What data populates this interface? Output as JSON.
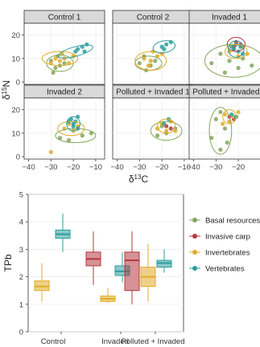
{
  "colors": {
    "basal": "#84a55a",
    "carp": "#b5383f",
    "invert": "#e0ac26",
    "vert": "#2b9d9d",
    "strip": "#d9d9d9",
    "grid": "#ececec"
  },
  "chart_data": [
    {
      "type": "scatter",
      "facets": [
        "Control 1",
        "Control 2",
        "Invaded 1",
        "Invaded 2",
        "Polluted + Invaded 1",
        "Polluted + Invaded 2"
      ],
      "xlabel": "δ13C",
      "ylabel": "δ15N",
      "xlim": [
        -42,
        -6
      ],
      "ylim": [
        -1,
        25
      ],
      "xticks": [
        -40,
        -30,
        -20,
        -10
      ],
      "yticks": [
        0,
        10,
        20
      ],
      "series": [
        {
          "name": "Basal resources",
          "color_key": "basal"
        },
        {
          "name": "Invasive carp",
          "color_key": "carp"
        },
        {
          "name": "Invertebrates",
          "color_key": "invert"
        },
        {
          "name": "Vertebrates",
          "color_key": "vert"
        }
      ],
      "points": {
        "Control 1": {
          "basal": [
            [
              -30,
              9
            ],
            [
              -28,
              6
            ],
            [
              -26,
              7
            ],
            [
              -29,
              4
            ],
            [
              -24,
              8
            ],
            [
              -27,
              11
            ]
          ],
          "invert": [
            [
              -30,
              8
            ],
            [
              -26,
              9
            ],
            [
              -24,
              10
            ],
            [
              -22,
              8
            ],
            [
              -20,
              11
            ],
            [
              -28,
              10
            ],
            [
              -25,
              12
            ]
          ],
          "vert": [
            [
              -18,
              14
            ],
            [
              -16,
              15
            ],
            [
              -14,
              16
            ],
            [
              -19,
              13
            ],
            [
              -15,
              13
            ]
          ]
        },
        "Control 2": {
          "basal": [
            [
              -30,
              8
            ],
            [
              -27,
              5
            ],
            [
              -25,
              7
            ],
            [
              -23,
              9
            ],
            [
              -28,
              11
            ]
          ],
          "invert": [
            [
              -28,
              10
            ],
            [
              -25,
              9
            ],
            [
              -22,
              11
            ],
            [
              -20,
              12
            ],
            [
              -24,
              13
            ],
            [
              -26,
              7
            ]
          ],
          "vert": [
            [
              -20,
              15
            ],
            [
              -18,
              16
            ],
            [
              -16,
              17
            ],
            [
              -19,
              14
            ]
          ]
        },
        "Invaded 1": {
          "basal": [
            [
              -32,
              8
            ],
            [
              -26,
              4
            ],
            [
              -20,
              6
            ],
            [
              -14,
              7
            ],
            [
              -28,
              12
            ],
            [
              -18,
              10
            ],
            [
              -24,
              9
            ]
          ],
          "carp": [
            [
              -21,
              17
            ],
            [
              -19,
              16
            ],
            [
              -22,
              15
            ]
          ],
          "invert": [
            [
              -24,
              13
            ],
            [
              -20,
              11
            ],
            [
              -16,
              12
            ],
            [
              -22,
              14
            ],
            [
              -18,
              15
            ]
          ],
          "vert": [
            [
              -22,
              14
            ],
            [
              -20,
              13
            ],
            [
              -19,
              15
            ],
            [
              -18,
              12
            ],
            [
              -21,
              16
            ],
            [
              -23,
              15
            ]
          ]
        },
        "Invaded 2": {
          "basal": [
            [
              -26,
              8
            ],
            [
              -22,
              7
            ],
            [
              -16,
              9
            ],
            [
              -12,
              10
            ]
          ],
          "invert": [
            [
              -30,
              2
            ],
            [
              -24,
              12
            ],
            [
              -20,
              11
            ],
            [
              -18,
              13
            ],
            [
              -22,
              14
            ]
          ],
          "vert": [
            [
              -21,
              16
            ],
            [
              -20,
              14
            ],
            [
              -19,
              15
            ],
            [
              -18,
              17
            ],
            [
              -22,
              15
            ],
            [
              -20,
              13
            ],
            [
              -18,
              12
            ]
          ]
        },
        "Polluted + Invaded 1": {
          "basal": [
            [
              -22,
              9
            ],
            [
              -18,
              10
            ],
            [
              -14,
              12
            ],
            [
              -20,
              13
            ]
          ],
          "carp": [
            [
              -18,
              13
            ],
            [
              -16,
              12
            ]
          ],
          "invert": [
            [
              -22,
              12
            ],
            [
              -20,
              14
            ],
            [
              -16,
              15
            ],
            [
              -18,
              11
            ],
            [
              -14,
              11
            ]
          ],
          "vert": [
            [
              -19,
              14
            ],
            [
              -17,
              16
            ]
          ]
        },
        "Polluted + Invaded 2": {
          "basal": [
            [
              -32,
              8
            ],
            [
              -28,
              3
            ],
            [
              -26,
              12
            ],
            [
              -30,
              16
            ],
            [
              -28,
              19
            ],
            [
              -25,
              6
            ]
          ],
          "carp": [
            [
              -24,
              17
            ],
            [
              -22,
              16
            ]
          ],
          "invert": [
            [
              -26,
              18
            ],
            [
              -24,
              15
            ],
            [
              -22,
              17
            ],
            [
              -20,
              19
            ],
            [
              -27,
              14
            ]
          ],
          "vert": [
            [
              -23,
              18
            ],
            [
              -21,
              17
            ]
          ]
        }
      },
      "ellipses": {
        "Control 1": [
          {
            "k": "basal",
            "cx": -26,
            "cy": 8,
            "rx": 6,
            "ry": 3.5,
            "rot": 0
          },
          {
            "k": "invert",
            "cx": -26,
            "cy": 10,
            "rx": 8,
            "ry": 3,
            "rot": 0
          },
          {
            "k": "vert",
            "cx": -19,
            "cy": 13,
            "rx": 8,
            "ry": 2,
            "rot": -15
          }
        ],
        "Control 2": [
          {
            "k": "basal",
            "cx": -26,
            "cy": 8,
            "rx": 6,
            "ry": 3,
            "rot": 0
          },
          {
            "k": "invert",
            "cx": -25,
            "cy": 9,
            "rx": 7,
            "ry": 4,
            "rot": 0
          },
          {
            "k": "vert",
            "cx": -19,
            "cy": 15,
            "rx": 5,
            "ry": 2.5,
            "rot": -10
          }
        ],
        "Invaded 1": [
          {
            "k": "basal",
            "cx": -22,
            "cy": 9,
            "rx": 13,
            "ry": 7,
            "rot": 0
          },
          {
            "k": "carp",
            "cx": -21,
            "cy": 16,
            "rx": 4,
            "ry": 3,
            "rot": 0
          },
          {
            "k": "invert",
            "cx": -21,
            "cy": 13,
            "rx": 5,
            "ry": 3,
            "rot": 0
          },
          {
            "k": "vert",
            "cx": -21,
            "cy": 14,
            "rx": 3.5,
            "ry": 3.5,
            "rot": 0
          }
        ],
        "Invaded 2": [
          {
            "k": "basal",
            "cx": -19,
            "cy": 9,
            "rx": 9,
            "ry": 3,
            "rot": 0
          },
          {
            "k": "invert",
            "cx": -21,
            "cy": 12,
            "rx": 6,
            "ry": 3,
            "rot": 0
          },
          {
            "k": "vert",
            "cx": -20,
            "cy": 14,
            "rx": 3,
            "ry": 3,
            "rot": 0
          }
        ],
        "Polluted + Invaded 1": [
          {
            "k": "basal",
            "cx": -18,
            "cy": 11,
            "rx": 7,
            "ry": 4,
            "rot": 0
          },
          {
            "k": "invert",
            "cx": -18,
            "cy": 13,
            "rx": 4,
            "ry": 3,
            "rot": 0
          }
        ],
        "Polluted + Invaded 2": [
          {
            "k": "basal",
            "cx": -28,
            "cy": 11,
            "rx": 5,
            "ry": 10,
            "rot": 0
          },
          {
            "k": "invert",
            "cx": -24,
            "cy": 17,
            "rx": 3,
            "ry": 3,
            "rot": 0
          }
        ]
      }
    },
    {
      "type": "box",
      "categories": [
        "Control",
        "Invaded",
        "Polluted + Invaded"
      ],
      "ylabel": "TPb",
      "ylim": [
        0,
        5
      ],
      "yticks": [
        0,
        1,
        2,
        3,
        4,
        5
      ],
      "legend_position": "right",
      "series": [
        {
          "name": "Basal resources",
          "color_key": "basal"
        },
        {
          "name": "Invasive carp",
          "color_key": "carp"
        },
        {
          "name": "Invertebrates",
          "color_key": "invert"
        },
        {
          "name": "Vertebrates",
          "color_key": "vert"
        }
      ],
      "boxes": [
        {
          "cat": 0,
          "k": "invert",
          "min": 1.1,
          "q1": 1.5,
          "med": 1.65,
          "q3": 1.85,
          "max": 2.5
        },
        {
          "cat": 0,
          "k": "vert",
          "min": 2.9,
          "q1": 3.4,
          "med": 3.55,
          "q3": 3.7,
          "max": 4.3
        },
        {
          "cat": 1,
          "k": "carp",
          "min": 1.7,
          "q1": 2.4,
          "med": 2.65,
          "q3": 2.9,
          "max": 3.65
        },
        {
          "cat": 1,
          "k": "invert",
          "min": 1.05,
          "q1": 1.1,
          "med": 1.2,
          "q3": 1.3,
          "max": 1.6
        },
        {
          "cat": 1,
          "k": "vert",
          "min": 1.8,
          "q1": 2.05,
          "med": 2.2,
          "q3": 2.4,
          "max": 2.9
        },
        {
          "cat": 2,
          "k": "carp",
          "min": 1.0,
          "q1": 1.5,
          "med": 2.6,
          "q3": 2.9,
          "max": 3.65
        },
        {
          "cat": 2,
          "k": "invert",
          "min": 1.1,
          "q1": 1.65,
          "med": 2.0,
          "q3": 2.35,
          "max": 3.2
        },
        {
          "cat": 2,
          "k": "vert",
          "min": 2.15,
          "q1": 2.35,
          "med": 2.5,
          "q3": 2.6,
          "max": 3.0
        }
      ]
    }
  ]
}
